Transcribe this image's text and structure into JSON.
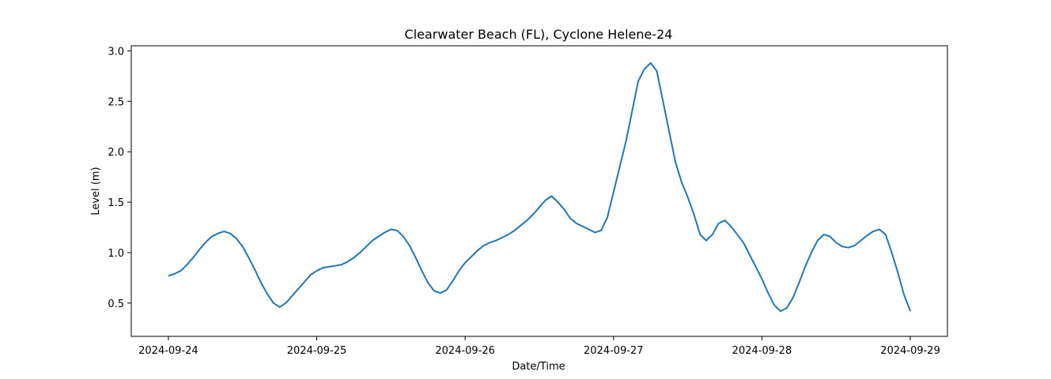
{
  "chart_data": {
    "type": "line",
    "title": "Clearwater Beach (FL), Cyclone Helene-24",
    "xlabel": "Date/Time",
    "ylabel": "Level (m)",
    "x_ticks": [
      "2024-09-24",
      "2024-09-25",
      "2024-09-26",
      "2024-09-27",
      "2024-09-28",
      "2024-09-29"
    ],
    "y_ticks": [
      "0.5",
      "1.0",
      "1.5",
      "2.0",
      "2.5",
      "3.0"
    ],
    "xlim": [
      "2024-09-23 18:00",
      "2024-09-29 06:00"
    ],
    "ylim": [
      0.17,
      3.05
    ],
    "grid": false,
    "legend": "none",
    "color": "#1f77b4",
    "series": [
      {
        "x": [
          "2024-09-24 00:00",
          "2024-09-24 01:00",
          "2024-09-24 02:00",
          "2024-09-24 03:00",
          "2024-09-24 04:00",
          "2024-09-24 05:00",
          "2024-09-24 06:00",
          "2024-09-24 07:00",
          "2024-09-24 08:00",
          "2024-09-24 09:00",
          "2024-09-24 10:00",
          "2024-09-24 11:00",
          "2024-09-24 12:00",
          "2024-09-24 13:00",
          "2024-09-24 14:00",
          "2024-09-24 15:00",
          "2024-09-24 16:00",
          "2024-09-24 17:00",
          "2024-09-24 18:00",
          "2024-09-24 19:00",
          "2024-09-24 20:00",
          "2024-09-24 21:00",
          "2024-09-24 22:00",
          "2024-09-24 23:00",
          "2024-09-25 00:00",
          "2024-09-25 01:00",
          "2024-09-25 02:00",
          "2024-09-25 03:00",
          "2024-09-25 04:00",
          "2024-09-25 05:00",
          "2024-09-25 06:00",
          "2024-09-25 07:00",
          "2024-09-25 08:00",
          "2024-09-25 09:00",
          "2024-09-25 10:00",
          "2024-09-25 11:00",
          "2024-09-25 12:00",
          "2024-09-25 13:00",
          "2024-09-25 14:00",
          "2024-09-25 15:00",
          "2024-09-25 16:00",
          "2024-09-25 17:00",
          "2024-09-25 18:00",
          "2024-09-25 19:00",
          "2024-09-25 20:00",
          "2024-09-25 21:00",
          "2024-09-25 22:00",
          "2024-09-25 23:00",
          "2024-09-26 00:00",
          "2024-09-26 01:00",
          "2024-09-26 02:00",
          "2024-09-26 03:00",
          "2024-09-26 04:00",
          "2024-09-26 05:00",
          "2024-09-26 06:00",
          "2024-09-26 07:00",
          "2024-09-26 08:00",
          "2024-09-26 09:00",
          "2024-09-26 10:00",
          "2024-09-26 11:00",
          "2024-09-26 12:00",
          "2024-09-26 13:00",
          "2024-09-26 14:00",
          "2024-09-26 15:00",
          "2024-09-26 16:00",
          "2024-09-26 17:00",
          "2024-09-26 18:00",
          "2024-09-26 19:00",
          "2024-09-26 20:00",
          "2024-09-26 21:00",
          "2024-09-26 22:00",
          "2024-09-26 23:00",
          "2024-09-27 00:00",
          "2024-09-27 01:00",
          "2024-09-27 02:00",
          "2024-09-27 03:00",
          "2024-09-27 04:00",
          "2024-09-27 05:00",
          "2024-09-27 06:00",
          "2024-09-27 07:00",
          "2024-09-27 08:00",
          "2024-09-27 09:00",
          "2024-09-27 10:00",
          "2024-09-27 11:00",
          "2024-09-27 12:00",
          "2024-09-27 13:00",
          "2024-09-27 14:00",
          "2024-09-27 15:00",
          "2024-09-27 16:00",
          "2024-09-27 17:00",
          "2024-09-27 18:00",
          "2024-09-27 19:00",
          "2024-09-27 20:00",
          "2024-09-27 21:00",
          "2024-09-27 22:00",
          "2024-09-27 23:00",
          "2024-09-28 00:00",
          "2024-09-28 01:00",
          "2024-09-28 02:00",
          "2024-09-28 03:00",
          "2024-09-28 04:00",
          "2024-09-28 05:00",
          "2024-09-28 06:00",
          "2024-09-28 07:00",
          "2024-09-28 08:00",
          "2024-09-28 09:00",
          "2024-09-28 10:00",
          "2024-09-28 11:00",
          "2024-09-28 12:00",
          "2024-09-28 13:00",
          "2024-09-28 14:00",
          "2024-09-28 15:00",
          "2024-09-28 16:00",
          "2024-09-28 17:00",
          "2024-09-28 18:00",
          "2024-09-28 19:00",
          "2024-09-28 20:00",
          "2024-09-28 21:00",
          "2024-09-28 22:00",
          "2024-09-28 23:00",
          "2024-09-29 00:00"
        ],
        "values": [
          0.77,
          0.79,
          0.82,
          0.88,
          0.95,
          1.03,
          1.1,
          1.16,
          1.19,
          1.21,
          1.19,
          1.14,
          1.06,
          0.95,
          0.83,
          0.7,
          0.59,
          0.5,
          0.46,
          0.5,
          0.57,
          0.64,
          0.71,
          0.78,
          0.82,
          0.85,
          0.86,
          0.87,
          0.88,
          0.91,
          0.95,
          1.0,
          1.06,
          1.12,
          1.16,
          1.2,
          1.23,
          1.22,
          1.16,
          1.07,
          0.95,
          0.82,
          0.7,
          0.62,
          0.6,
          0.63,
          0.72,
          0.82,
          0.9,
          0.96,
          1.02,
          1.07,
          1.1,
          1.12,
          1.15,
          1.18,
          1.22,
          1.27,
          1.32,
          1.38,
          1.45,
          1.52,
          1.56,
          1.5,
          1.43,
          1.34,
          1.29,
          1.26,
          1.23,
          1.2,
          1.22,
          1.35,
          1.6,
          1.85,
          2.1,
          2.4,
          2.7,
          2.82,
          2.88,
          2.8,
          2.5,
          2.2,
          1.9,
          1.7,
          1.55,
          1.38,
          1.18,
          1.12,
          1.18,
          1.29,
          1.32,
          1.26,
          1.18,
          1.1,
          0.98,
          0.86,
          0.74,
          0.6,
          0.48,
          0.42,
          0.45,
          0.55,
          0.7,
          0.86,
          1.0,
          1.12,
          1.18,
          1.16,
          1.1,
          1.06,
          1.05,
          1.07,
          1.12,
          1.17,
          1.21,
          1.23,
          1.18,
          1.0,
          0.8,
          0.58,
          0.42
        ]
      }
    ]
  }
}
